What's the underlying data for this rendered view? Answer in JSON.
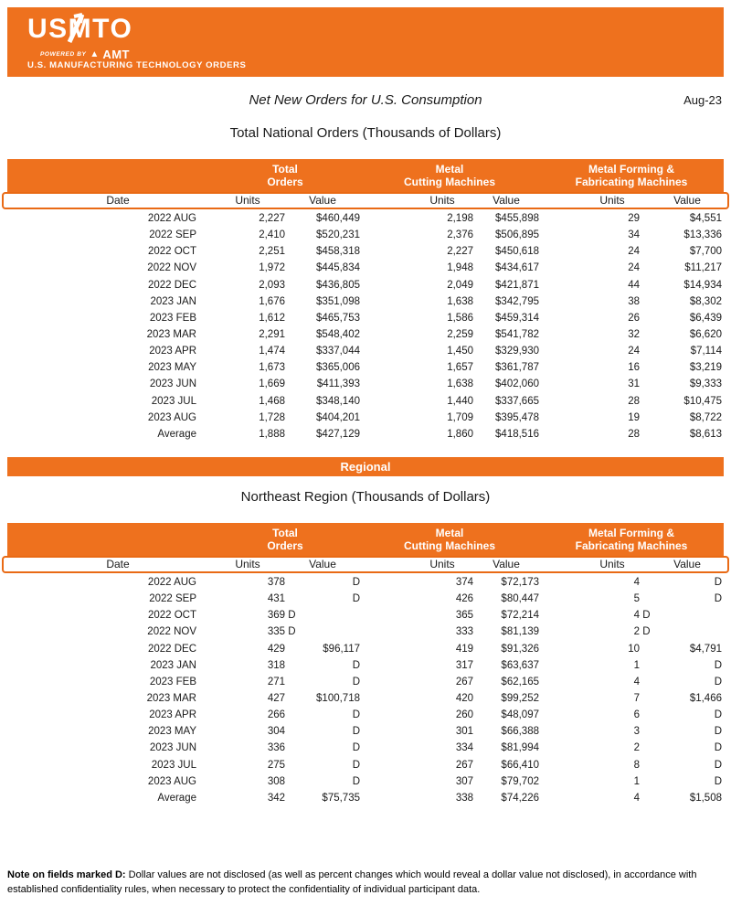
{
  "colors": {
    "orange": "#EE711E",
    "border_orange": "#E96A15"
  },
  "brand": {
    "logo": "USMTO",
    "powered_by": "POWERED BY",
    "amt": "AMT",
    "subtitle": "U.S. MANUFACTURING TECHNOLOGY ORDERS"
  },
  "report": {
    "title": "Net New Orders for U.S. Consumption",
    "date_label": "Aug-23"
  },
  "national": {
    "heading": "Total National Orders (Thousands of Dollars)",
    "groups": [
      {
        "l1": "Total",
        "l2": "Orders"
      },
      {
        "l1": "Metal",
        "l2": "Cutting Machines"
      },
      {
        "l1": "Metal Forming &",
        "l2": "Fabricating Machines"
      }
    ],
    "subheaders": [
      "Date",
      "Units",
      "Value",
      "Units",
      "Value",
      "Units",
      "Value"
    ],
    "rows": [
      [
        "2022 AUG",
        "2,227",
        "$460,449",
        "2,198",
        "$455,898",
        "29",
        "$4,551"
      ],
      [
        "2022 SEP",
        "2,410",
        "$520,231",
        "2,376",
        "$506,895",
        "34",
        "$13,336"
      ],
      [
        "2022 OCT",
        "2,251",
        "$458,318",
        "2,227",
        "$450,618",
        "24",
        "$7,700"
      ],
      [
        "2022 NOV",
        "1,972",
        "$445,834",
        "1,948",
        "$434,617",
        "24",
        "$11,217"
      ],
      [
        "2022 DEC",
        "2,093",
        "$436,805",
        "2,049",
        "$421,871",
        "44",
        "$14,934"
      ],
      [
        "2023 JAN",
        "1,676",
        "$351,098",
        "1,638",
        "$342,795",
        "38",
        "$8,302"
      ],
      [
        "2023 FEB",
        "1,612",
        "$465,753",
        "1,586",
        "$459,314",
        "26",
        "$6,439"
      ],
      [
        "2023 MAR",
        "2,291",
        "$548,402",
        "2,259",
        "$541,782",
        "32",
        "$6,620"
      ],
      [
        "2023 APR",
        "1,474",
        "$337,044",
        "1,450",
        "$329,930",
        "24",
        "$7,114"
      ],
      [
        "2023 MAY",
        "1,673",
        "$365,006",
        "1,657",
        "$361,787",
        "16",
        "$3,219"
      ],
      [
        "2023 JUN",
        "1,669",
        "$411,393",
        "1,638",
        "$402,060",
        "31",
        "$9,333"
      ],
      [
        "2023 JUL",
        "1,468",
        "$348,140",
        "1,440",
        "$337,665",
        "28",
        "$10,475"
      ],
      [
        "2023 AUG",
        "1,728",
        "$404,201",
        "1,709",
        "$395,478",
        "19",
        "$8,722"
      ],
      [
        "Average",
        "1,888",
        "$427,129",
        "1,860",
        "$418,516",
        "28",
        "$8,613"
      ]
    ]
  },
  "regional": {
    "banner": "Regional"
  },
  "northeast": {
    "heading": "Northeast Region (Thousands of Dollars)",
    "groups": [
      {
        "l1": "Total",
        "l2": "Orders"
      },
      {
        "l1": "Metal",
        "l2": "Cutting Machines"
      },
      {
        "l1": "Metal Forming &",
        "l2": "Fabricating Machines"
      }
    ],
    "subheaders": [
      "Date",
      "Units",
      "Value",
      "Units",
      "Value",
      "Units",
      "Value"
    ],
    "rows": [
      [
        "2022 AUG",
        "378",
        "D",
        "374",
        "$72,173",
        "4",
        "D"
      ],
      [
        "2022 SEP",
        "431",
        "D",
        "426",
        "$80,447",
        "5",
        "D"
      ],
      [
        "2022 OCT",
        "369 D",
        "",
        "365",
        "$72,214",
        "4 D",
        ""
      ],
      [
        "2022 NOV",
        "335 D",
        "",
        "333",
        "$81,139",
        "2 D",
        ""
      ],
      [
        "2022 DEC",
        "429",
        "$96,117",
        "419",
        "$91,326",
        "10",
        "$4,791"
      ],
      [
        "2023 JAN",
        "318",
        "D",
        "317",
        "$63,637",
        "1",
        "D"
      ],
      [
        "2023 FEB",
        "271",
        "D",
        "267",
        "$62,165",
        "4",
        "D"
      ],
      [
        "2023 MAR",
        "427",
        "$100,718",
        "420",
        "$99,252",
        "7",
        "$1,466"
      ],
      [
        "2023 APR",
        "266",
        "D",
        "260",
        "$48,097",
        "6",
        "D"
      ],
      [
        "2023 MAY",
        "304",
        "D",
        "301",
        "$66,388",
        "3",
        "D"
      ],
      [
        "2023 JUN",
        "336",
        "D",
        "334",
        "$81,994",
        "2",
        "D"
      ],
      [
        "2023 JUL",
        "275",
        "D",
        "267",
        "$66,410",
        "8",
        "D"
      ],
      [
        "2023 AUG",
        "308",
        "D",
        "307",
        "$79,702",
        "1",
        "D"
      ],
      [
        "Average",
        "342",
        "$75,735",
        "338",
        "$74,226",
        "4",
        "$1,508"
      ]
    ]
  },
  "note": {
    "bold": "Note on fields marked D:",
    "text": " Dollar values are not disclosed (as well as percent changes which would reveal a dollar value not disclosed), in accordance with established confidentiality rules, when necessary to protect the confidentiality of individual participant data."
  }
}
